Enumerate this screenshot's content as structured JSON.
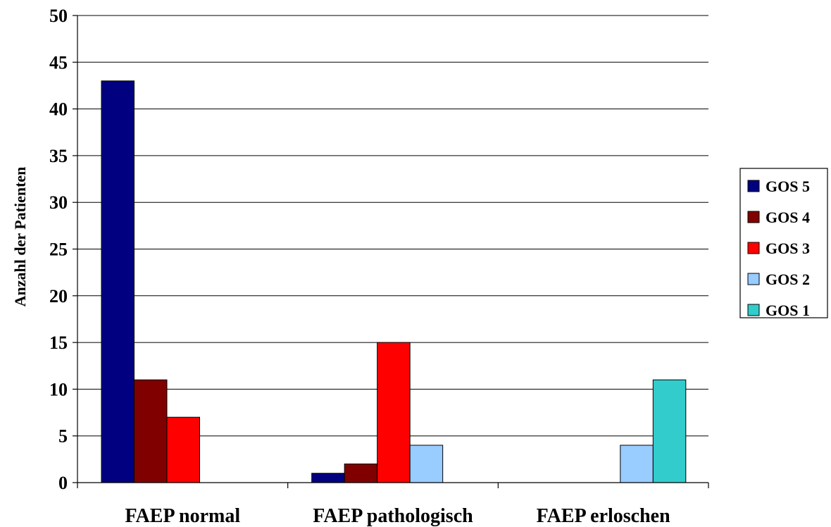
{
  "chart_data": {
    "type": "bar",
    "title": "",
    "xlabel": "",
    "ylabel": "Anzahl der Patienten",
    "ylim": [
      0,
      50
    ],
    "yticks": [
      0,
      5,
      10,
      15,
      20,
      25,
      30,
      35,
      40,
      45,
      50
    ],
    "grid": true,
    "legend_position": "right",
    "categories": [
      "FAEP normal",
      "FAEP pathologisch",
      "FAEP erloschen"
    ],
    "series": [
      {
        "name": "GOS 5",
        "color": "#000080",
        "values": [
          43,
          1,
          0
        ]
      },
      {
        "name": "GOS 4",
        "color": "#800000",
        "values": [
          11,
          2,
          0
        ]
      },
      {
        "name": "GOS 3",
        "color": "#FF0000",
        "values": [
          7,
          15,
          0
        ]
      },
      {
        "name": "GOS 2",
        "color": "#99CCFF",
        "values": [
          0,
          4,
          4
        ]
      },
      {
        "name": "GOS 1",
        "color": "#33CCCC",
        "values": [
          0,
          0,
          11
        ]
      }
    ]
  }
}
